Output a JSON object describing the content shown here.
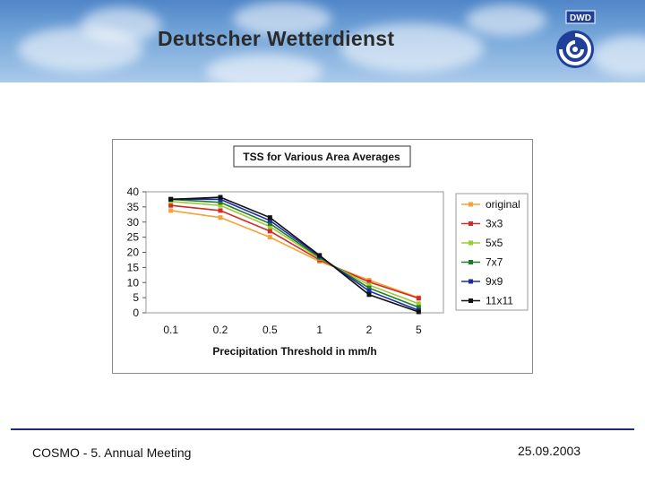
{
  "header": {
    "brand": "Deutscher Wetterdienst",
    "logo_text": "DWD"
  },
  "footer": {
    "left": "COSMO - 5. Annual Meeting",
    "right": "25.09.2003"
  },
  "chart_data": {
    "type": "line",
    "title": "TSS for Various Area Averages",
    "xlabel": "Precipitation Threshold in mm/h",
    "ylabel": "",
    "categories": [
      "0.1",
      "0.2",
      "0.5",
      "1",
      "2",
      "5"
    ],
    "ylim": [
      0,
      40
    ],
    "yticks": [
      0,
      5,
      10,
      15,
      20,
      25,
      30,
      35,
      40
    ],
    "legend_position": "right",
    "series": [
      {
        "name": "original",
        "color": "#f4a23a",
        "values": [
          33.8,
          31.5,
          25,
          17,
          10.8,
          5
        ]
      },
      {
        "name": "3x3",
        "color": "#d42a2a",
        "values": [
          35.5,
          33.8,
          27,
          17.5,
          10.2,
          4.8
        ]
      },
      {
        "name": "5x5",
        "color": "#9acd32",
        "values": [
          36.8,
          35.5,
          28.5,
          18,
          9.2,
          3
        ]
      },
      {
        "name": "7x7",
        "color": "#1c7a2a",
        "values": [
          37.5,
          36.5,
          29.5,
          18.3,
          8.2,
          1.8
        ]
      },
      {
        "name": "9x9",
        "color": "#1c2aa8",
        "values": [
          37.6,
          37.5,
          30.5,
          18.7,
          7.2,
          0.8
        ]
      },
      {
        "name": "11x11",
        "color": "#111111",
        "values": [
          37.5,
          38.2,
          31.5,
          19,
          6,
          0.3
        ]
      }
    ]
  }
}
